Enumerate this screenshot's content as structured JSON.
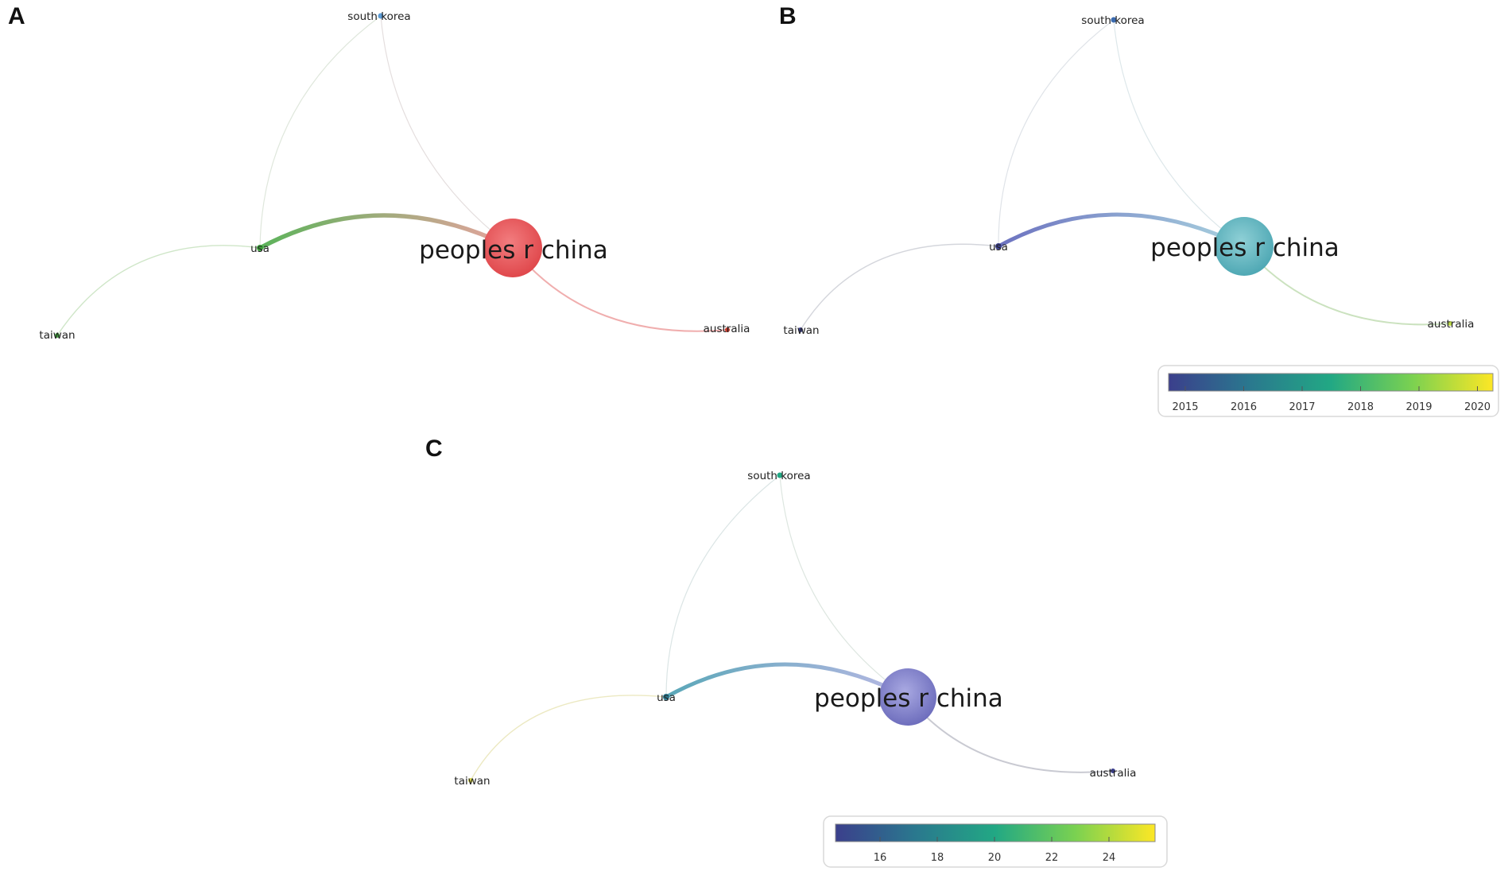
{
  "panels": {
    "a": {
      "letter": "A"
    },
    "b": {
      "letter": "B"
    },
    "c": {
      "letter": "C"
    }
  },
  "nodes": {
    "china": "peoples r china",
    "usa": "usa",
    "south_korea": "south korea",
    "taiwan": "taiwan",
    "australia": "australia"
  },
  "legend_b": {
    "colormap": "viridis",
    "ticks": [
      "2015",
      "2016",
      "2017",
      "2018",
      "2019",
      "2020"
    ]
  },
  "legend_c": {
    "colormap": "viridis",
    "ticks": [
      "16",
      "18",
      "20",
      "22",
      "24"
    ]
  },
  "colors": {
    "cluster_red": "#e8474a",
    "cluster_green": "#3fa63c",
    "viridis": [
      "#3b3f8c",
      "#2a788e",
      "#22a884",
      "#7ad151",
      "#fde725"
    ]
  }
}
